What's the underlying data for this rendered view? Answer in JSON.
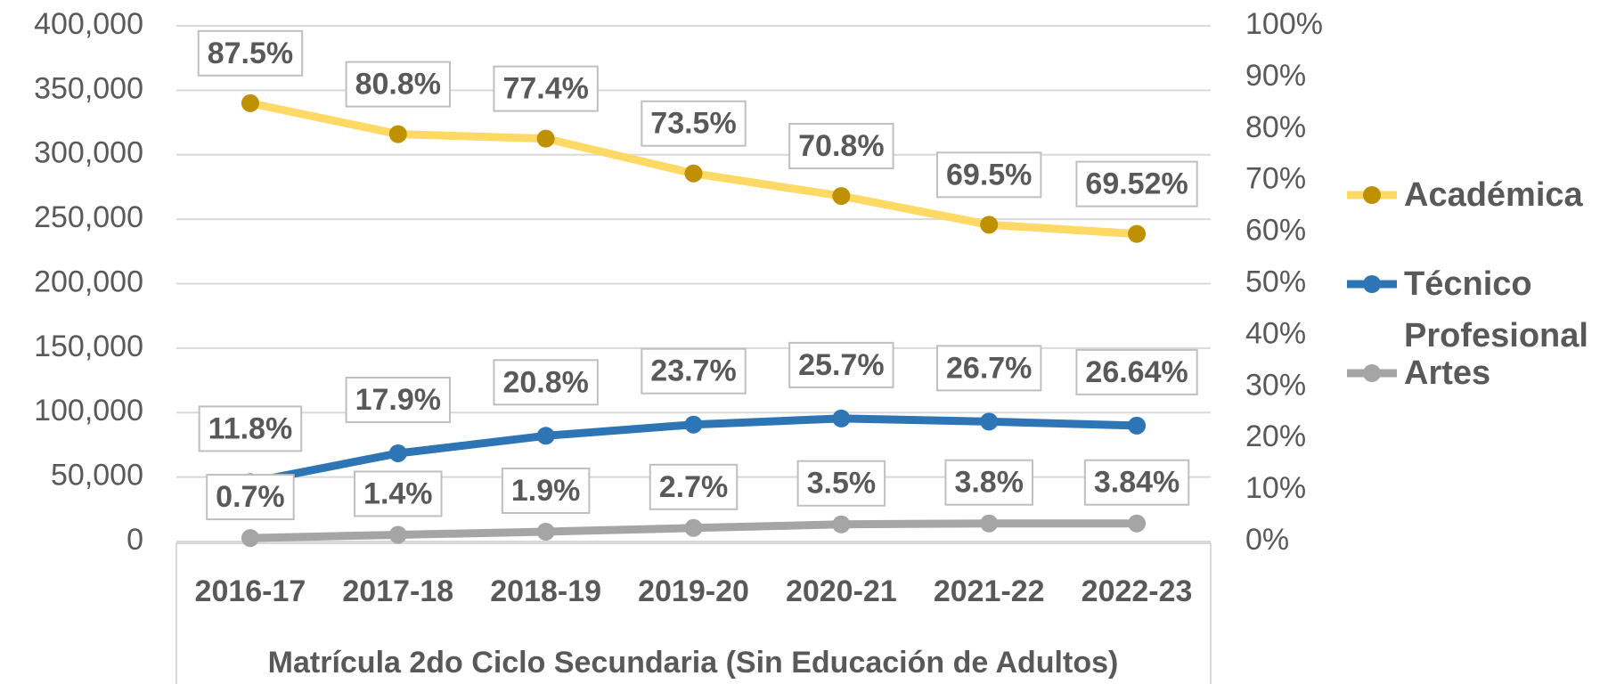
{
  "chart_data": {
    "type": "line",
    "x_label": "Matrícula 2do Ciclo Secundaria (Sin Educación de Adultos)",
    "categories": [
      "2016-17",
      "2017-18",
      "2018-19",
      "2019-20",
      "2020-21",
      "2021-22",
      "2022-23"
    ],
    "series": [
      {
        "name": "Académica",
        "color": "#bf9000",
        "line_color": "#ffd966",
        "values": [
          340000,
          316000,
          312500,
          285500,
          268000,
          245700,
          238600
        ],
        "data_labels": [
          "87.5%",
          "80.8%",
          "77.4%",
          "73.5%",
          "70.8%",
          "69.5%",
          "69.52%"
        ]
      },
      {
        "name": "Técnico Profesional",
        "color": "#2e75b6",
        "line_color": "#2e75b6",
        "values": [
          46000,
          68400,
          82000,
          90700,
          95400,
          93000,
          89900
        ],
        "data_labels": [
          "11.8%",
          "17.9%",
          "20.8%",
          "23.7%",
          "25.7%",
          "26.7%",
          "26.64%"
        ]
      },
      {
        "name": "Artes",
        "color": "#a5a5a5",
        "line_color": "#a5a5a5",
        "values": [
          2700,
          5200,
          7600,
          10500,
          13300,
          14000,
          14000
        ],
        "data_labels": [
          "0.7%",
          "1.4%",
          "1.9%",
          "2.7%",
          "3.5%",
          "3.8%",
          "3.84%"
        ]
      }
    ],
    "ylim": [
      0,
      400000
    ],
    "yticks": [
      0,
      {
        "value": 50000,
        "label": "50,000"
      },
      {
        "value": 100000,
        "label": "100,000"
      },
      {
        "value": 150000,
        "label": "150,000"
      },
      {
        "value": 200000,
        "label": "200,000"
      },
      {
        "value": 250000,
        "label": "250,000"
      },
      {
        "value": 300000,
        "label": "300,000"
      },
      {
        "value": 350000,
        "label": "350,000"
      },
      {
        "value": 400000,
        "label": "400,000"
      }
    ],
    "y2lim": [
      0,
      100
    ],
    "y2ticks": [
      {
        "value": 0,
        "label": "0%"
      },
      {
        "value": 10,
        "label": "10%"
      },
      {
        "value": 20,
        "label": "20%"
      },
      {
        "value": 30,
        "label": "30%"
      },
      {
        "value": 40,
        "label": "40%"
      },
      {
        "value": 50,
        "label": "50%"
      },
      {
        "value": 60,
        "label": "60%"
      },
      {
        "value": 70,
        "label": "70%"
      },
      {
        "value": 80,
        "label": "80%"
      },
      {
        "value": 90,
        "label": "90%"
      },
      {
        "value": 100,
        "label": "100%"
      }
    ],
    "grid": true,
    "legend": "right"
  }
}
